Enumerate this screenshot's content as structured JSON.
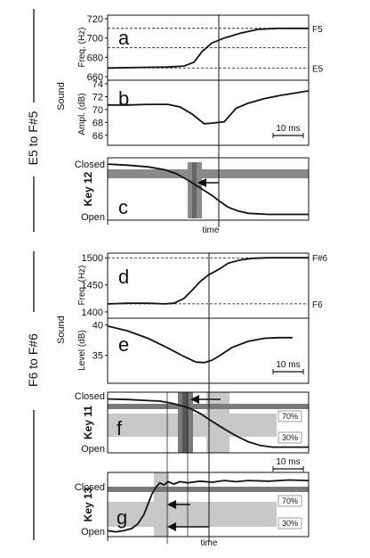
{
  "figure": {
    "section1_label": "E5 to F#5",
    "section2_label": "F6 to F#6",
    "time_label": "time",
    "scalebar_label": "10 ms"
  },
  "chart_data": [
    {
      "id": "a",
      "type": "line",
      "panel_label": "a",
      "group_label": "Sound",
      "ylabel": "Freq. (Hz)",
      "ylim": [
        660,
        720
      ],
      "yticks": [
        660,
        680,
        700,
        720
      ],
      "reference_lines": [
        {
          "value": 710,
          "label": "F5"
        },
        {
          "value": 690,
          "label": ""
        },
        {
          "value": 669,
          "label": "E5"
        }
      ],
      "xlim": [
        0,
        100
      ],
      "x": [
        0,
        10,
        20,
        30,
        38,
        43,
        47,
        52,
        58,
        66,
        75,
        85,
        100
      ],
      "y": [
        669,
        669.3,
        669.7,
        670,
        671,
        675,
        686,
        695,
        700,
        705,
        709,
        710,
        710
      ]
    },
    {
      "id": "b",
      "type": "line",
      "panel_label": "b",
      "ylabel": "Ampl. (dB)",
      "ylim": [
        65,
        74
      ],
      "yticks": [
        66,
        68,
        70,
        72,
        74
      ],
      "xlim": [
        0,
        100
      ],
      "x": [
        0,
        10,
        20,
        30,
        36,
        42,
        48,
        52,
        58,
        64,
        70,
        78,
        86,
        94,
        100
      ],
      "y": [
        70.7,
        70.7,
        70.8,
        70.8,
        70.4,
        69.3,
        67.8,
        67.9,
        68.1,
        70.2,
        71.0,
        71.7,
        72.2,
        72.6,
        72.9
      ]
    },
    {
      "id": "c",
      "type": "line",
      "panel_label": "c",
      "key_label": "Key 12",
      "ytop_label": "Closed",
      "ybottom_label": "Open",
      "ylim": [
        0,
        1
      ],
      "xlim": [
        0,
        100
      ],
      "x": [
        0,
        10,
        20,
        28,
        34,
        40,
        46,
        52,
        56,
        60,
        65,
        70,
        80,
        90,
        100
      ],
      "y": [
        0.95,
        0.93,
        0.9,
        0.85,
        0.78,
        0.66,
        0.52,
        0.38,
        0.27,
        0.17,
        0.1,
        0.06,
        0.04,
        0.04,
        0.04
      ]
    },
    {
      "id": "d",
      "type": "line",
      "panel_label": "d",
      "group_label": "Sound",
      "ylabel": "Freq. (Hz)",
      "ylim": [
        1395,
        1502
      ],
      "yticks": [
        1400,
        1450,
        1500
      ],
      "reference_lines": [
        {
          "value": 1500,
          "label": "F#6"
        },
        {
          "value": 1415,
          "label": "F6"
        }
      ],
      "xlim": [
        0,
        100
      ],
      "x": [
        0,
        10,
        20,
        28,
        33,
        38,
        42,
        46,
        50,
        55,
        60,
        66,
        72,
        80,
        90,
        100
      ],
      "y": [
        1415,
        1416,
        1416,
        1415,
        1416,
        1425,
        1440,
        1456,
        1468,
        1478,
        1490,
        1496,
        1499,
        1500,
        1500,
        1500
      ]
    },
    {
      "id": "e",
      "type": "line",
      "panel_label": "e",
      "ylabel": "Level (dB)",
      "ylim": [
        31,
        40.5
      ],
      "yticks": [
        35,
        40
      ],
      "xlim": [
        0,
        100
      ],
      "x": [
        0,
        10,
        20,
        30,
        38,
        44,
        48,
        52,
        56,
        62,
        70,
        78,
        85,
        92
      ],
      "y": [
        39.8,
        39.0,
        37.8,
        36.2,
        34.8,
        33.9,
        33.8,
        34.2,
        35.0,
        36.3,
        37.3,
        37.8,
        37.9,
        37.9
      ]
    },
    {
      "id": "f",
      "type": "line",
      "panel_label": "f",
      "key_label": "Key 11",
      "ytop_label": "Closed",
      "ybottom_label": "Open",
      "level_labels": [
        "70%",
        "30%"
      ],
      "ylim": [
        0,
        1
      ],
      "xlim": [
        0,
        100
      ],
      "x": [
        0,
        10,
        20,
        26,
        32,
        40,
        46,
        52,
        58,
        64,
        70,
        76,
        82,
        90,
        100
      ],
      "y": [
        0.94,
        0.93,
        0.91,
        0.9,
        0.86,
        0.78,
        0.67,
        0.52,
        0.38,
        0.25,
        0.14,
        0.07,
        0.04,
        0.04,
        0.04
      ]
    },
    {
      "id": "g",
      "type": "line",
      "panel_label": "g",
      "key_label": "Key 13",
      "ytop_label": "Closed",
      "ybottom_label": "Open",
      "level_labels": [
        "70%",
        "30%"
      ],
      "ylim": [
        0,
        1
      ],
      "xlim": [
        0,
        100
      ],
      "x": [
        0,
        4,
        8,
        12,
        15,
        18,
        20,
        22,
        24,
        26,
        28,
        30,
        33,
        36,
        40,
        46,
        52,
        58,
        64,
        70,
        80,
        90,
        100
      ],
      "y": [
        0.04,
        0.02,
        0.04,
        0.08,
        0.16,
        0.32,
        0.5,
        0.68,
        0.8,
        0.88,
        0.84,
        0.9,
        0.86,
        0.9,
        0.88,
        0.91,
        0.89,
        0.92,
        0.9,
        0.92,
        0.91,
        0.93,
        0.92
      ]
    }
  ]
}
